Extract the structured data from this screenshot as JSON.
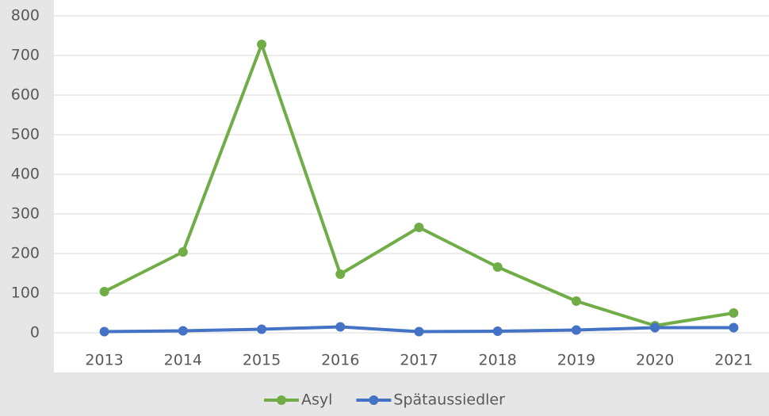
{
  "chart_data": {
    "type": "line",
    "categories": [
      "2013",
      "2014",
      "2015",
      "2016",
      "2017",
      "2018",
      "2019",
      "2020",
      "2021"
    ],
    "series": [
      {
        "name": "Asyl",
        "color": "#70ad47",
        "values": [
          104,
          204,
          728,
          148,
          266,
          166,
          80,
          18,
          50
        ]
      },
      {
        "name": "Spätaussiedler",
        "color": "#4472c4",
        "values": [
          3,
          5,
          9,
          15,
          3,
          4,
          7,
          13,
          13
        ]
      }
    ],
    "ylim": [
      0,
      800
    ],
    "yticks": [
      0,
      100,
      200,
      300,
      400,
      500,
      600,
      700,
      800
    ],
    "grid": true,
    "legend": "bottom"
  }
}
